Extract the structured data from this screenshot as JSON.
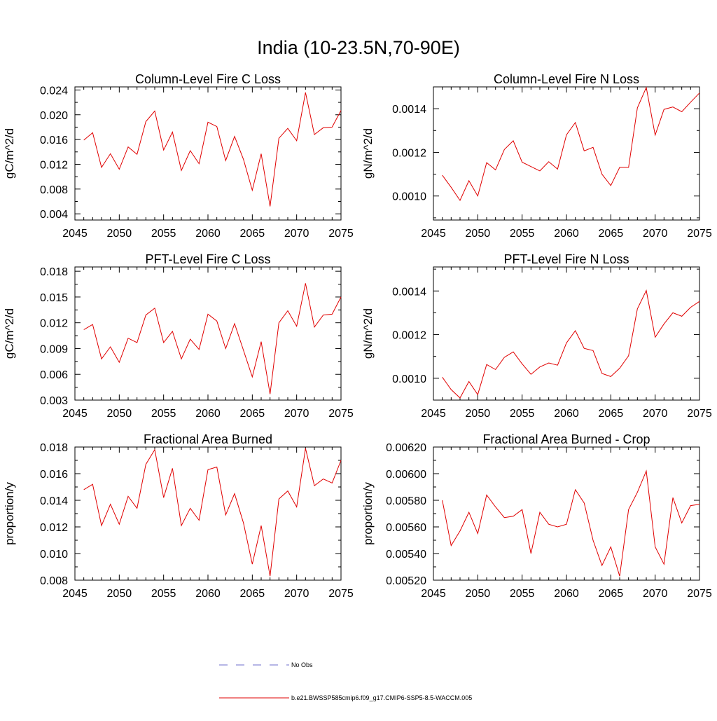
{
  "title": "India (10-23.5N,70-90E)",
  "legend": [
    {
      "name": "No Obs",
      "color": "#6c6ccc",
      "dash": "dashed"
    },
    {
      "name": "b.e21.BWSSP585cmip6.f09_g17.CMIP6-SSP5-8.5-WACCM.005",
      "color": "#e00000",
      "dash": "solid"
    }
  ],
  "chart_data": [
    {
      "type": "line",
      "title": "Column-Level Fire C Loss",
      "ylabel": "gC/m^2/d",
      "xlim": [
        2045,
        2075
      ],
      "ylim": [
        0.003,
        0.0245
      ],
      "xticks": [
        "2045",
        "2050",
        "2055",
        "2060",
        "2065",
        "2070",
        "2075"
      ],
      "yticks": [
        "0.004",
        "0.008",
        "0.012",
        "0.016",
        "0.020",
        "0.024"
      ],
      "x": [
        2046,
        2047,
        2048,
        2049,
        2050,
        2051,
        2052,
        2053,
        2054,
        2055,
        2056,
        2057,
        2058,
        2059,
        2060,
        2061,
        2062,
        2063,
        2064,
        2065,
        2066,
        2067,
        2068,
        2069,
        2070,
        2071,
        2072,
        2073,
        2074,
        2075
      ],
      "series": [
        {
          "values": [
            0.0159,
            0.0171,
            0.0115,
            0.0137,
            0.0112,
            0.0148,
            0.0136,
            0.0189,
            0.0206,
            0.0143,
            0.0172,
            0.011,
            0.0142,
            0.0121,
            0.0188,
            0.0181,
            0.0126,
            0.0165,
            0.0128,
            0.0078,
            0.0137,
            0.0052,
            0.0162,
            0.0178,
            0.0158,
            0.0236,
            0.0168,
            0.0179,
            0.018,
            0.0207
          ]
        }
      ]
    },
    {
      "type": "line",
      "title": "Column-Level Fire N Loss",
      "ylabel": "gN/m^2/d",
      "xlim": [
        2045,
        2075
      ],
      "ylim": [
        0.00089,
        0.0015
      ],
      "xticks": [
        "2045",
        "2050",
        "2055",
        "2060",
        "2065",
        "2070",
        "2075"
      ],
      "yticks": [
        "0.0010",
        "0.0012",
        "0.0014"
      ],
      "x": [
        2046,
        2047,
        2048,
        2049,
        2050,
        2051,
        2052,
        2053,
        2054,
        2055,
        2056,
        2057,
        2058,
        2059,
        2060,
        2061,
        2062,
        2063,
        2064,
        2065,
        2066,
        2067,
        2068,
        2069,
        2070,
        2071,
        2072,
        2073,
        2074,
        2075
      ],
      "series": [
        {
          "values": [
            0.001095,
            0.00104,
            0.00098,
            0.00107,
            0.001,
            0.001153,
            0.00112,
            0.001213,
            0.001253,
            0.001155,
            0.001135,
            0.001115,
            0.001157,
            0.001123,
            0.00128,
            0.001337,
            0.001207,
            0.001223,
            0.0011,
            0.001048,
            0.001131,
            0.001131,
            0.001404,
            0.001497,
            0.001279,
            0.001397,
            0.001408,
            0.001386,
            0.00143,
            0.001472
          ]
        }
      ]
    },
    {
      "type": "line",
      "title": "PFT-Level Fire C Loss",
      "ylabel": "gC/m^2/d",
      "xlim": [
        2045,
        2075
      ],
      "ylim": [
        0.003,
        0.0185
      ],
      "xticks": [
        "2045",
        "2050",
        "2055",
        "2060",
        "2065",
        "2070",
        "2075"
      ],
      "yticks": [
        "0.003",
        "0.006",
        "0.009",
        "0.012",
        "0.015",
        "0.018"
      ],
      "x": [
        2046,
        2047,
        2048,
        2049,
        2050,
        2051,
        2052,
        2053,
        2054,
        2055,
        2056,
        2057,
        2058,
        2059,
        2060,
        2061,
        2062,
        2063,
        2064,
        2065,
        2066,
        2067,
        2068,
        2069,
        2070,
        2071,
        2072,
        2073,
        2074,
        2075
      ],
      "series": [
        {
          "values": [
            0.0112,
            0.0118,
            0.0078,
            0.0092,
            0.0074,
            0.0102,
            0.0097,
            0.0129,
            0.0137,
            0.0097,
            0.011,
            0.0078,
            0.0101,
            0.0089,
            0.013,
            0.0122,
            0.009,
            0.0119,
            0.0088,
            0.0057,
            0.0098,
            0.0037,
            0.012,
            0.0134,
            0.0116,
            0.0166,
            0.0115,
            0.0129,
            0.013,
            0.015
          ]
        }
      ]
    },
    {
      "type": "line",
      "title": "PFT-Level Fire N Loss",
      "ylabel": "gN/m^2/d",
      "xlim": [
        2045,
        2075
      ],
      "ylim": [
        0.0009,
        0.00151
      ],
      "xticks": [
        "2045",
        "2050",
        "2055",
        "2060",
        "2065",
        "2070",
        "2075"
      ],
      "yticks": [
        "0.0010",
        "0.0012",
        "0.0014"
      ],
      "x": [
        2046,
        2047,
        2048,
        2049,
        2050,
        2051,
        2052,
        2053,
        2054,
        2055,
        2056,
        2057,
        2058,
        2059,
        2060,
        2061,
        2062,
        2063,
        2064,
        2065,
        2066,
        2067,
        2068,
        2069,
        2070,
        2071,
        2072,
        2073,
        2074,
        2075
      ],
      "series": [
        {
          "values": [
            0.001005,
            0.000948,
            0.00091,
            0.000985,
            0.000925,
            0.001063,
            0.00104,
            0.001096,
            0.001121,
            0.001066,
            0.001018,
            0.001052,
            0.00107,
            0.00106,
            0.001162,
            0.001218,
            0.001137,
            0.001127,
            0.001022,
            0.001008,
            0.001046,
            0.001103,
            0.001318,
            0.001402,
            0.001188,
            0.001249,
            0.0013,
            0.001284,
            0.001325,
            0.001352
          ]
        }
      ]
    },
    {
      "type": "line",
      "title": "Fractional Area Burned",
      "ylabel": "proportion/y",
      "xlim": [
        2045,
        2075
      ],
      "ylim": [
        0.008,
        0.018
      ],
      "xticks": [
        "2045",
        "2050",
        "2055",
        "2060",
        "2065",
        "2070",
        "2075"
      ],
      "yticks": [
        "0.008",
        "0.010",
        "0.012",
        "0.014",
        "0.016",
        "0.018"
      ],
      "x": [
        2046,
        2047,
        2048,
        2049,
        2050,
        2051,
        2052,
        2053,
        2054,
        2055,
        2056,
        2057,
        2058,
        2059,
        2060,
        2061,
        2062,
        2063,
        2064,
        2065,
        2066,
        2067,
        2068,
        2069,
        2070,
        2071,
        2072,
        2073,
        2074,
        2075
      ],
      "series": [
        {
          "values": [
            0.0148,
            0.0152,
            0.0121,
            0.0137,
            0.0122,
            0.0143,
            0.0134,
            0.0167,
            0.0178,
            0.0142,
            0.0164,
            0.0121,
            0.0134,
            0.0125,
            0.0163,
            0.0165,
            0.0129,
            0.0145,
            0.0123,
            0.0092,
            0.0121,
            0.0083,
            0.0141,
            0.0147,
            0.0135,
            0.0179,
            0.0151,
            0.0156,
            0.0153,
            0.017
          ]
        }
      ]
    },
    {
      "type": "line",
      "title": "Fractional Area Burned - Crop",
      "ylabel": "proportion/y",
      "xlim": [
        2045,
        2075
      ],
      "ylim": [
        0.0052,
        0.0062
      ],
      "xticks": [
        "2045",
        "2050",
        "2055",
        "2060",
        "2065",
        "2070",
        "2075"
      ],
      "yticks": [
        "0.00520",
        "0.00540",
        "0.00560",
        "0.00580",
        "0.00600",
        "0.00620"
      ],
      "x": [
        2046,
        2047,
        2048,
        2049,
        2050,
        2051,
        2052,
        2053,
        2054,
        2055,
        2056,
        2057,
        2058,
        2059,
        2060,
        2061,
        2062,
        2063,
        2064,
        2065,
        2066,
        2067,
        2068,
        2069,
        2070,
        2071,
        2072,
        2073,
        2074,
        2075
      ],
      "series": [
        {
          "values": [
            0.0058,
            0.00546,
            0.00557,
            0.00571,
            0.00555,
            0.00584,
            0.00575,
            0.00567,
            0.00568,
            0.00573,
            0.0054,
            0.00571,
            0.00562,
            0.0056,
            0.00562,
            0.00588,
            0.00578,
            0.0055,
            0.00531,
            0.00545,
            0.00523,
            0.00573,
            0.00586,
            0.00602,
            0.00545,
            0.00532,
            0.00582,
            0.00563,
            0.00576,
            0.00577
          ]
        }
      ]
    }
  ]
}
